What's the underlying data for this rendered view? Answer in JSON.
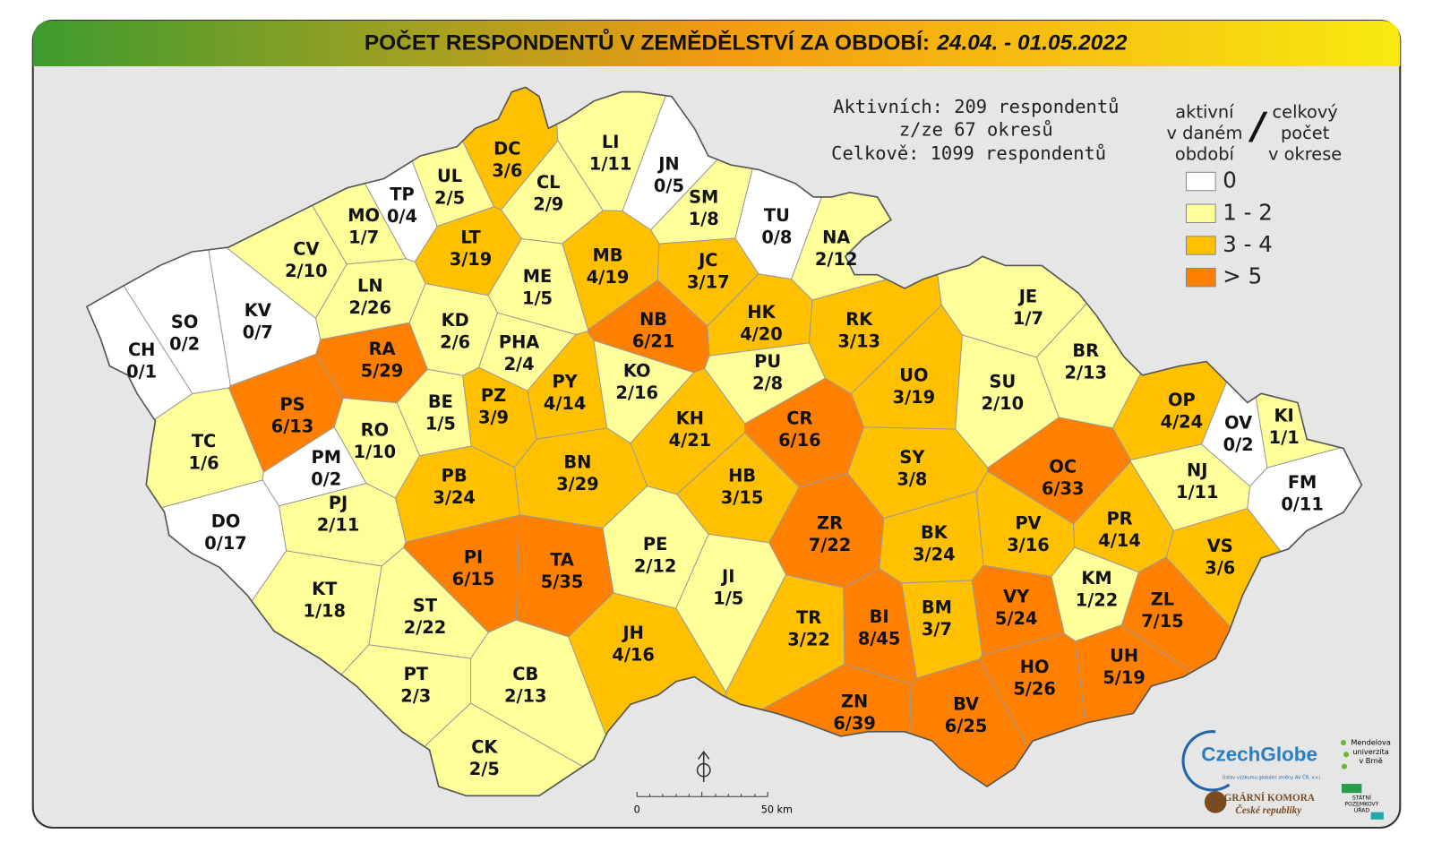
{
  "header": {
    "title": "POČET RESPONDENTŮ V ZEMĚDĚLSTVÍ ZA OBDOBÍ:",
    "period": "24.04. - 01.05.2022"
  },
  "stats": [
    "Aktivních: 209 respondentů",
    "z/ze 67 okresů",
    "Celkově: 1099 respondentů"
  ],
  "legend": {
    "active_label": [
      "aktivní",
      "v daném",
      "období"
    ],
    "separator": "/",
    "total_label": [
      "celkový",
      "počet",
      "v okrese"
    ],
    "items": [
      {
        "label": "0",
        "color": "#ffffff"
      },
      {
        "label": "1 - 2",
        "color": "#ffff99"
      },
      {
        "label": "3 - 4",
        "color": "#ffc000"
      },
      {
        "label": "> 5",
        "color": "#ff8000"
      }
    ]
  },
  "districts": [
    {
      "code": "DC",
      "value": "3/6",
      "color": "#ffc000"
    },
    {
      "code": "LI",
      "value": "1/11",
      "color": "#ffff99"
    },
    {
      "code": "JN",
      "value": "0/5",
      "color": "#ffffff"
    },
    {
      "code": "UL",
      "value": "2/5",
      "color": "#ffff99"
    },
    {
      "code": "CL",
      "value": "2/9",
      "color": "#ffff99"
    },
    {
      "code": "TP",
      "value": "0/4",
      "color": "#ffffff"
    },
    {
      "code": "SM",
      "value": "1/8",
      "color": "#ffff99"
    },
    {
      "code": "TU",
      "value": "0/8",
      "color": "#ffffff"
    },
    {
      "code": "MO",
      "value": "1/7",
      "color": "#ffff99"
    },
    {
      "code": "NA",
      "value": "2/12",
      "color": "#ffff99"
    },
    {
      "code": "CV",
      "value": "2/10",
      "color": "#ffff99"
    },
    {
      "code": "LT",
      "value": "3/19",
      "color": "#ffc000"
    },
    {
      "code": "MB",
      "value": "4/19",
      "color": "#ffc000"
    },
    {
      "code": "JC",
      "value": "3/17",
      "color": "#ffc000"
    },
    {
      "code": "ME",
      "value": "1/5",
      "color": "#ffff99"
    },
    {
      "code": "LN",
      "value": "2/26",
      "color": "#ffff99"
    },
    {
      "code": "KV",
      "value": "0/7",
      "color": "#ffffff"
    },
    {
      "code": "SO",
      "value": "0/2",
      "color": "#ffffff"
    },
    {
      "code": "HK",
      "value": "4/20",
      "color": "#ffc000"
    },
    {
      "code": "NB",
      "value": "6/21",
      "color": "#ff8000"
    },
    {
      "code": "RK",
      "value": "3/13",
      "color": "#ffc000"
    },
    {
      "code": "JE",
      "value": "1/7",
      "color": "#ffff99"
    },
    {
      "code": "CH",
      "value": "0/1",
      "color": "#ffffff"
    },
    {
      "code": "KD",
      "value": "2/6",
      "color": "#ffff99"
    },
    {
      "code": "RA",
      "value": "5/29",
      "color": "#ff8000"
    },
    {
      "code": "PHA",
      "value": "2/4",
      "color": "#ffff99"
    },
    {
      "code": "PU",
      "value": "2/8",
      "color": "#ffff99"
    },
    {
      "code": "BR",
      "value": "2/13",
      "color": "#ffff99"
    },
    {
      "code": "UO",
      "value": "3/19",
      "color": "#ffc000"
    },
    {
      "code": "SU",
      "value": "2/10",
      "color": "#ffff99"
    },
    {
      "code": "OP",
      "value": "4/24",
      "color": "#ffc000"
    },
    {
      "code": "PY",
      "value": "4/14",
      "color": "#ffc000"
    },
    {
      "code": "KO",
      "value": "2/16",
      "color": "#ffff99"
    },
    {
      "code": "PS",
      "value": "6/13",
      "color": "#ff8000"
    },
    {
      "code": "BE",
      "value": "1/5",
      "color": "#ffff99"
    },
    {
      "code": "PZ",
      "value": "3/9",
      "color": "#ffc000"
    },
    {
      "code": "KH",
      "value": "4/21",
      "color": "#ffc000"
    },
    {
      "code": "CR",
      "value": "6/16",
      "color": "#ff8000"
    },
    {
      "code": "KI",
      "value": "1/1",
      "color": "#ffff99"
    },
    {
      "code": "OV",
      "value": "0/2",
      "color": "#ffffff"
    },
    {
      "code": "TC",
      "value": "1/6",
      "color": "#ffff99"
    },
    {
      "code": "RO",
      "value": "1/10",
      "color": "#ffff99"
    },
    {
      "code": "SY",
      "value": "3/8",
      "color": "#ffc000"
    },
    {
      "code": "OC",
      "value": "6/33",
      "color": "#ff8000"
    },
    {
      "code": "BN",
      "value": "3/29",
      "color": "#ffc000"
    },
    {
      "code": "PM",
      "value": "0/2",
      "color": "#ffffff"
    },
    {
      "code": "NJ",
      "value": "1/11",
      "color": "#ffff99"
    },
    {
      "code": "FM",
      "value": "0/11",
      "color": "#ffffff"
    },
    {
      "code": "PB",
      "value": "3/24",
      "color": "#ffc000"
    },
    {
      "code": "HB",
      "value": "3/15",
      "color": "#ffc000"
    },
    {
      "code": "PJ",
      "value": "2/11",
      "color": "#ffff99"
    },
    {
      "code": "DO",
      "value": "0/17",
      "color": "#ffffff"
    },
    {
      "code": "ZR",
      "value": "7/22",
      "color": "#ff8000"
    },
    {
      "code": "BK",
      "value": "3/24",
      "color": "#ffc000"
    },
    {
      "code": "PV",
      "value": "3/16",
      "color": "#ffc000"
    },
    {
      "code": "PR",
      "value": "4/14",
      "color": "#ffc000"
    },
    {
      "code": "VS",
      "value": "3/6",
      "color": "#ffc000"
    },
    {
      "code": "PE",
      "value": "2/12",
      "color": "#ffff99"
    },
    {
      "code": "PI",
      "value": "6/15",
      "color": "#ff8000"
    },
    {
      "code": "TA",
      "value": "5/35",
      "color": "#ff8000"
    },
    {
      "code": "JI",
      "value": "1/5",
      "color": "#ffff99"
    },
    {
      "code": "KM",
      "value": "1/22",
      "color": "#ffff99"
    },
    {
      "code": "ZL",
      "value": "7/15",
      "color": "#ff8000"
    },
    {
      "code": "KT",
      "value": "1/18",
      "color": "#ffff99"
    },
    {
      "code": "ST",
      "value": "2/22",
      "color": "#ffff99"
    },
    {
      "code": "VY",
      "value": "5/24",
      "color": "#ff8000"
    },
    {
      "code": "BM",
      "value": "3/7",
      "color": "#ffc000"
    },
    {
      "code": "BI",
      "value": "8/45",
      "color": "#ff8000"
    },
    {
      "code": "TR",
      "value": "3/22",
      "color": "#ffc000"
    },
    {
      "code": "JH",
      "value": "4/16",
      "color": "#ffc000"
    },
    {
      "code": "UH",
      "value": "5/19",
      "color": "#ff8000"
    },
    {
      "code": "HO",
      "value": "5/26",
      "color": "#ff8000"
    },
    {
      "code": "PT",
      "value": "2/3",
      "color": "#ffff99"
    },
    {
      "code": "CB",
      "value": "2/13",
      "color": "#ffff99"
    },
    {
      "code": "ZN",
      "value": "6/39",
      "color": "#ff8000"
    },
    {
      "code": "BV",
      "value": "6/25",
      "color": "#ff8000"
    },
    {
      "code": "CK",
      "value": "2/5",
      "color": "#ffff99"
    }
  ],
  "scale_bar": {
    "start": "0",
    "end": "50 km"
  },
  "logos": {
    "czechglobe": "CzechGlobe",
    "czechglobe_sub": "Ústav výzkumu globální změny AV ČR, v.v.i.",
    "mendel": [
      "Mendelova",
      "univerzita",
      "v Brně"
    ],
    "agrarni": [
      "AGRÁRNÍ KOMORA",
      "České republiky"
    ],
    "spu": [
      "STÁTNÍ",
      "POZEMKOVÝ",
      "ÚŘAD"
    ]
  }
}
